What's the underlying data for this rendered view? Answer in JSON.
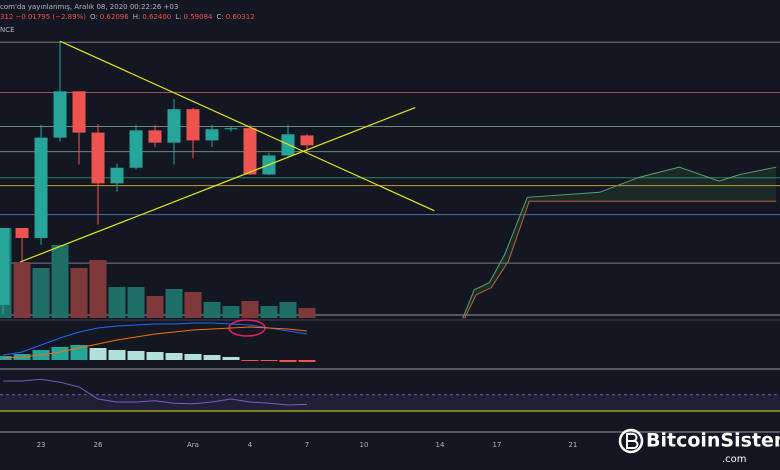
{
  "header": {
    "line1": "com'da yayınlanmış, Aralık 08, 2020 00:22:26 +03",
    "line2": [
      "312",
      "−0.01795 (−2.89%)",
      "O:",
      "0.62096",
      "H:",
      "0.62400",
      "L:",
      "0.59084",
      "C:",
      "0.60312"
    ],
    "source": "NCE"
  },
  "watermark": {
    "name": "BitcoinSistemi",
    "domain": ".com"
  },
  "chart_data": {
    "type": "candlestick",
    "xlim": [
      -0.16,
      40.9
    ],
    "xticks": [
      {
        "value": 2,
        "label": "23"
      },
      {
        "value": 5,
        "label": "26"
      },
      {
        "value": 10,
        "label": "Ara"
      },
      {
        "value": 13,
        "label": "4"
      },
      {
        "value": 16,
        "label": "7"
      },
      {
        "value": 19,
        "label": "10"
      },
      {
        "value": 23,
        "label": "14"
      },
      {
        "value": 26,
        "label": "17"
      },
      {
        "value": 30,
        "label": "21"
      }
    ],
    "ylim": [
      0.29,
      0.81
    ],
    "up_color": "#26a69a",
    "down_color": "#ef5350",
    "x": [
      0,
      1,
      2,
      3,
      4,
      5,
      6,
      7,
      8,
      9,
      10,
      11,
      12,
      13,
      14,
      15,
      16
    ],
    "open": [
      0.317,
      0.455,
      0.437,
      0.617,
      0.7,
      0.626,
      0.535,
      0.563,
      0.63,
      0.608,
      0.668,
      0.612,
      0.632,
      0.634,
      0.551,
      0.585,
      0.62096
    ],
    "high": [
      0.455,
      0.455,
      0.64,
      0.79,
      0.7,
      0.641,
      0.57,
      0.64,
      0.64,
      0.686,
      0.67,
      0.64,
      0.636,
      0.64,
      0.59,
      0.64,
      0.624
    ],
    "low": [
      0.3,
      0.394,
      0.425,
      0.61,
      0.569,
      0.461,
      0.52,
      0.56,
      0.6,
      0.569,
      0.58,
      0.6,
      0.628,
      0.55,
      0.55,
      0.58,
      0.59084
    ],
    "close": [
      0.455,
      0.437,
      0.617,
      0.7,
      0.626,
      0.535,
      0.563,
      0.63,
      0.608,
      0.668,
      0.612,
      0.632,
      0.634,
      0.551,
      0.585,
      0.623,
      0.60312
    ],
    "volume": {
      "ylim": [
        0,
        100
      ],
      "up_color": "#1f6e68",
      "down_color": "#80393b",
      "values": [
        90,
        56,
        50,
        73,
        50,
        58,
        31,
        31,
        22,
        29,
        26,
        16,
        12,
        17,
        12,
        16,
        10
      ]
    },
    "levels": [
      {
        "value": 0.788,
        "color": "#787b86"
      },
      {
        "value": 0.698,
        "color": "#b04a4a"
      },
      {
        "value": 0.637,
        "color": "#6b8a78"
      },
      {
        "value": 0.592,
        "color": "#6b8a78"
      },
      {
        "value": 0.545,
        "color": "#2e7d73"
      },
      {
        "value": 0.531,
        "color": "#c9962a"
      },
      {
        "value": 0.479,
        "color": "#4a6fa5"
      },
      {
        "value": 0.392,
        "color": "#787b86"
      },
      {
        "value": 0.299,
        "color": "#9598a1"
      }
    ],
    "trendlines": {
      "color": "#e5e510",
      "lines": [
        {
          "x": [
            3,
            22.7
          ],
          "y": [
            0.79,
            0.486
          ]
        },
        {
          "x": [
            0.9,
            21.7
          ],
          "y": [
            0.394,
            0.671
          ]
        }
      ]
    },
    "cloud": {
      "fill": "rgba(76,175,80,0.13)",
      "upper": {
        "color": "#5f9e6e",
        "x": [
          24.2,
          24.8,
          25.6,
          26.4,
          27.6,
          31.4,
          33.5,
          35.6,
          37.7,
          38.8,
          40.7
        ],
        "y": [
          0.293,
          0.344,
          0.357,
          0.407,
          0.51,
          0.519,
          0.546,
          0.564,
          0.539,
          0.551,
          0.564
        ]
      },
      "lower": {
        "color": "#c0623f",
        "x": [
          24.3,
          24.9,
          25.7,
          26.6,
          27.7,
          40.7
        ],
        "y": [
          0.293,
          0.335,
          0.348,
          0.395,
          0.503,
          0.503
        ]
      }
    },
    "macd": {
      "ylim": [
        -8,
        40
      ],
      "hist_up": "#b2dfdb",
      "hist_up_strong": "#26a69a",
      "hist_down": "#ef5350",
      "hist": [
        4,
        6,
        10,
        13,
        15,
        12,
        10,
        9,
        8,
        7,
        6,
        5,
        3,
        -1,
        -1,
        -2,
        -2
      ],
      "macd_color": "#2962ff",
      "macd": [
        5,
        8,
        15,
        22,
        28,
        32,
        34,
        35,
        36,
        36,
        37,
        37,
        36,
        35,
        32,
        29,
        26
      ],
      "signal_color": "#ff6d00",
      "signal": [
        2,
        3,
        5,
        8,
        12,
        16,
        20,
        23,
        26,
        28,
        30,
        31,
        32,
        33,
        32,
        31,
        29
      ]
    },
    "rsi": {
      "ylim": [
        0,
        100
      ],
      "color": "#7e57c2",
      "band": [
        35,
        62
      ],
      "band_fill": "rgba(126,87,194,0.12)",
      "low_color": "#e5e510",
      "values": [
        85,
        85,
        88,
        83,
        75,
        55,
        50,
        50,
        52,
        48,
        47,
        50,
        55,
        50,
        48,
        45,
        46
      ]
    }
  }
}
